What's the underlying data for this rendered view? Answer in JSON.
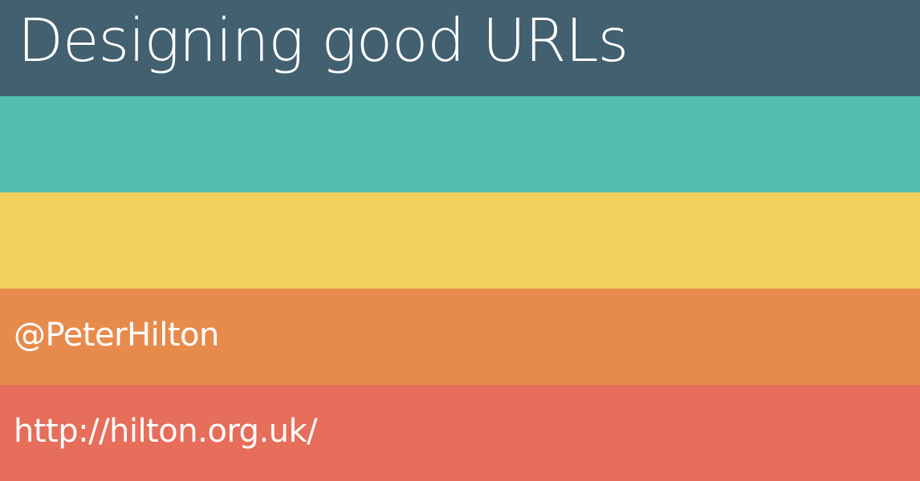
{
  "slide": {
    "title": "Designing good URLs",
    "author_handle": "@PeterHilton",
    "author_url": "http://hilton.org.uk/"
  },
  "colors": {
    "band_1": "#42606F",
    "band_2": "#51BEAE",
    "band_3": "#F2D05B",
    "band_4": "#E78B4D",
    "band_5": "#E66E5B",
    "text": "#FFFFFF"
  }
}
